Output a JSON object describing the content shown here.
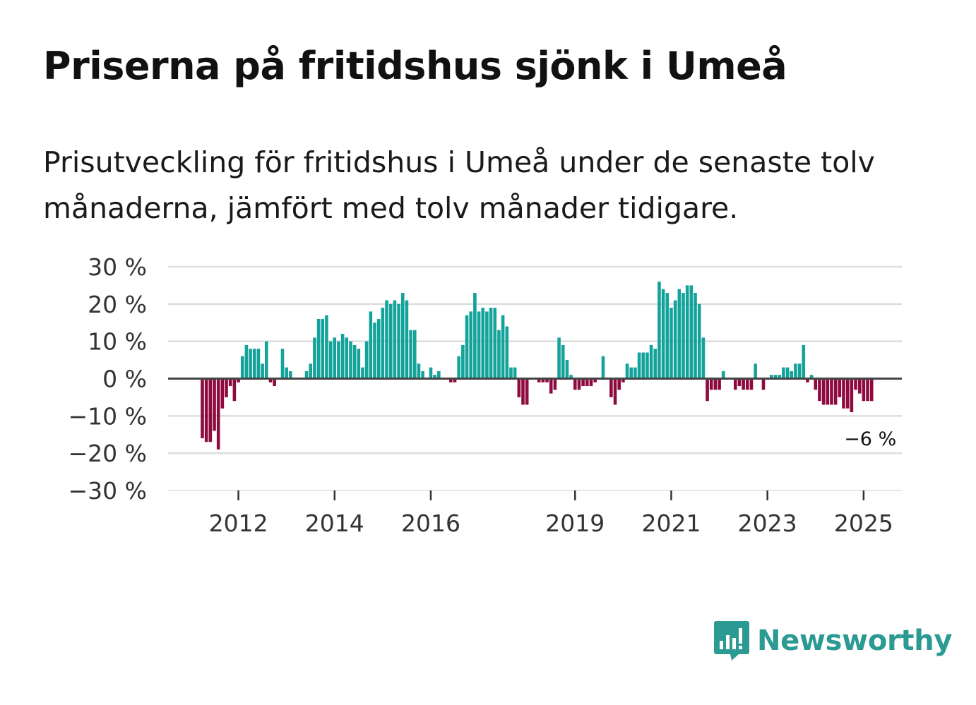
{
  "title": "Priserna på fritidshus sjönk i Umeå",
  "subtitle": "Prisutveckling för fritidshus i Umeå under de senaste tolv månaderna, jämfört med tolv månader tidigare.",
  "logo_text": "Newsworthy",
  "colors": {
    "positive": "#13a39a",
    "negative": "#8e0b3f",
    "zero_line": "#444444",
    "grid": "#dddddd",
    "logo": "#2b9a92"
  },
  "chart_data": {
    "type": "bar",
    "title": "Priserna på fritidshus sjönk i Umeå",
    "ylabel": "",
    "ylim": [
      -30,
      30
    ],
    "y_ticks": [
      30,
      20,
      10,
      0,
      -10,
      -20,
      -30
    ],
    "y_tick_labels": [
      "30 %",
      "20 %",
      "10 %",
      "0 %",
      "−10 %",
      "−20 %",
      "−30 %"
    ],
    "x_tick_labels": [
      "2012",
      "2014",
      "2016",
      "2019",
      "2021",
      "2023",
      "2025"
    ],
    "x_tick_years": [
      2012,
      2014,
      2016,
      2019,
      2021,
      2023,
      2025
    ],
    "start_year": 2011,
    "start_month": 4,
    "annotation": "−6 %",
    "grid": true,
    "values": [
      -16,
      -17,
      -17,
      -14,
      -19,
      -8,
      -5,
      -2,
      -6,
      -1,
      6,
      9,
      8,
      8,
      8,
      4,
      10,
      -1,
      -2,
      0,
      8,
      3,
      2,
      0,
      0,
      0,
      2,
      4,
      11,
      16,
      16,
      17,
      10,
      11,
      10,
      12,
      11,
      10,
      9,
      8,
      3,
      10,
      18,
      15,
      16,
      19,
      21,
      20,
      21,
      20,
      23,
      21,
      13,
      13,
      4,
      2,
      0,
      3,
      1,
      2,
      0,
      0,
      -1,
      -1,
      6,
      9,
      17,
      18,
      23,
      18,
      19,
      18,
      19,
      19,
      13,
      17,
      14,
      3,
      3,
      -5,
      -7,
      -7,
      0,
      0,
      -1,
      -1,
      -1,
      -4,
      -3,
      11,
      9,
      5,
      1,
      -3,
      -3,
      -2,
      -2,
      -2,
      -1,
      0,
      6,
      0,
      -5,
      -7,
      -3,
      -1,
      4,
      3,
      3,
      7,
      7,
      7,
      9,
      8,
      26,
      24,
      23,
      19,
      21,
      24,
      23,
      25,
      25,
      23,
      20,
      11,
      -6,
      -3,
      -3,
      -3,
      2,
      0,
      0,
      -3,
      -2,
      -3,
      -3,
      -3,
      4,
      0,
      -3,
      0,
      1,
      1,
      1,
      3,
      3,
      2,
      4,
      4,
      9,
      -1,
      1,
      -3,
      -6,
      -7,
      -7,
      -7,
      -7,
      -5,
      -8,
      -8,
      -9,
      -3,
      -4,
      -6,
      -6,
      -6
    ]
  }
}
